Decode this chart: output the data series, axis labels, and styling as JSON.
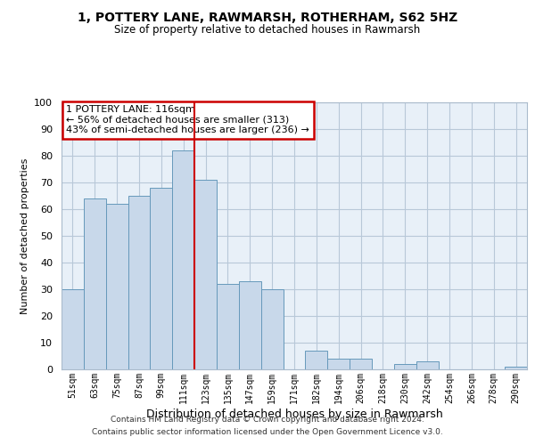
{
  "title": "1, POTTERY LANE, RAWMARSH, ROTHERHAM, S62 5HZ",
  "subtitle": "Size of property relative to detached houses in Rawmarsh",
  "xlabel": "Distribution of detached houses by size in Rawmarsh",
  "ylabel": "Number of detached properties",
  "bar_color": "#c8d8ea",
  "bar_edge_color": "#6699bb",
  "plot_bg_color": "#e8f0f8",
  "categories": [
    "51sqm",
    "63sqm",
    "75sqm",
    "87sqm",
    "99sqm",
    "111sqm",
    "123sqm",
    "135sqm",
    "147sqm",
    "159sqm",
    "171sqm",
    "182sqm",
    "194sqm",
    "206sqm",
    "218sqm",
    "230sqm",
    "242sqm",
    "254sqm",
    "266sqm",
    "278sqm",
    "290sqm"
  ],
  "values": [
    30,
    64,
    62,
    65,
    68,
    82,
    71,
    32,
    33,
    30,
    0,
    7,
    4,
    4,
    0,
    2,
    3,
    0,
    0,
    0,
    1
  ],
  "ylim": [
    0,
    100
  ],
  "yticks": [
    0,
    10,
    20,
    30,
    40,
    50,
    60,
    70,
    80,
    90,
    100
  ],
  "vline_x": 5.5,
  "vline_color": "#cc0000",
  "annotation_title": "1 POTTERY LANE: 116sqm",
  "annotation_line1": "← 56% of detached houses are smaller (313)",
  "annotation_line2": "43% of semi-detached houses are larger (236) →",
  "annotation_box_color": "#cc0000",
  "footer1": "Contains HM Land Registry data © Crown copyright and database right 2024.",
  "footer2": "Contains public sector information licensed under the Open Government Licence v3.0.",
  "background_color": "#ffffff",
  "grid_color": "#b8c8d8"
}
